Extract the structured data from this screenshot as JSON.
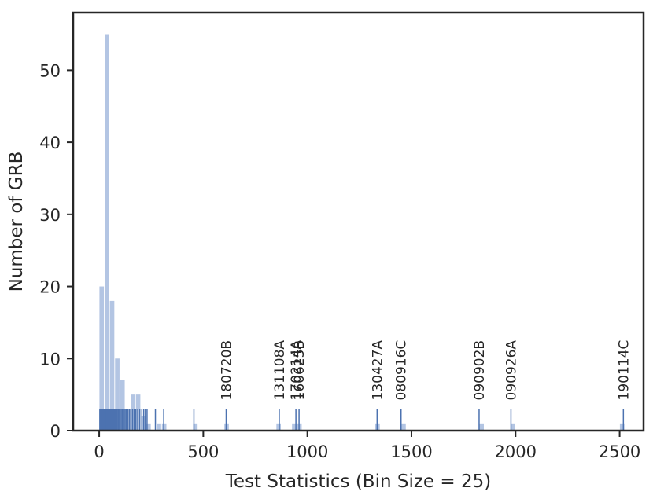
{
  "chart_data": {
    "type": "bar",
    "xlabel": "Test Statistics (Bin Size = 25)",
    "ylabel": "Number of GRB",
    "xlim": [
      -125,
      2615
    ],
    "ylim": [
      0,
      58
    ],
    "xticks": [
      0,
      500,
      1000,
      1500,
      2000,
      2500
    ],
    "yticks": [
      0,
      10,
      20,
      30,
      40,
      50
    ],
    "bin_size": 25,
    "bar_color": "#b3c5e3",
    "rug_color": "#4c72b0",
    "histogram": [
      {
        "x": 12,
        "count": 20
      },
      {
        "x": 37,
        "count": 55
      },
      {
        "x": 62,
        "count": 18
      },
      {
        "x": 87,
        "count": 10
      },
      {
        "x": 112,
        "count": 7
      },
      {
        "x": 137,
        "count": 3
      },
      {
        "x": 162,
        "count": 5
      },
      {
        "x": 187,
        "count": 5
      },
      {
        "x": 212,
        "count": 2
      },
      {
        "x": 237,
        "count": 1
      },
      {
        "x": 287,
        "count": 1
      },
      {
        "x": 312,
        "count": 1
      },
      {
        "x": 462,
        "count": 1
      },
      {
        "x": 612,
        "count": 1
      },
      {
        "x": 862,
        "count": 1
      },
      {
        "x": 937,
        "count": 1
      },
      {
        "x": 962,
        "count": 1
      },
      {
        "x": 1337,
        "count": 1
      },
      {
        "x": 1462,
        "count": 1
      },
      {
        "x": 1837,
        "count": 1
      },
      {
        "x": 1987,
        "count": 1
      },
      {
        "x": 2512,
        "count": 1
      }
    ],
    "rug": [
      3,
      8,
      12,
      15,
      18,
      21,
      24,
      27,
      30,
      33,
      36,
      39,
      42,
      45,
      48,
      51,
      54,
      57,
      60,
      64,
      68,
      72,
      76,
      80,
      85,
      90,
      95,
      100,
      106,
      112,
      118,
      124,
      130,
      137,
      145,
      152,
      160,
      168,
      176,
      185,
      195,
      205,
      214,
      222,
      230,
      270,
      310,
      455,
      610,
      865,
      945,
      960,
      1335,
      1450,
      1825,
      1978,
      2518
    ],
    "annotations": [
      {
        "label": "180720B",
        "x": 610
      },
      {
        "label": "131108A",
        "x": 865
      },
      {
        "label": "170214A",
        "x": 945
      },
      {
        "label": "160625B",
        "x": 960
      },
      {
        "label": "130427A",
        "x": 1335
      },
      {
        "label": "080916C",
        "x": 1450
      },
      {
        "label": "090902B",
        "x": 1825
      },
      {
        "label": "090926A",
        "x": 1978
      },
      {
        "label": "190114C",
        "x": 2518
      }
    ]
  }
}
